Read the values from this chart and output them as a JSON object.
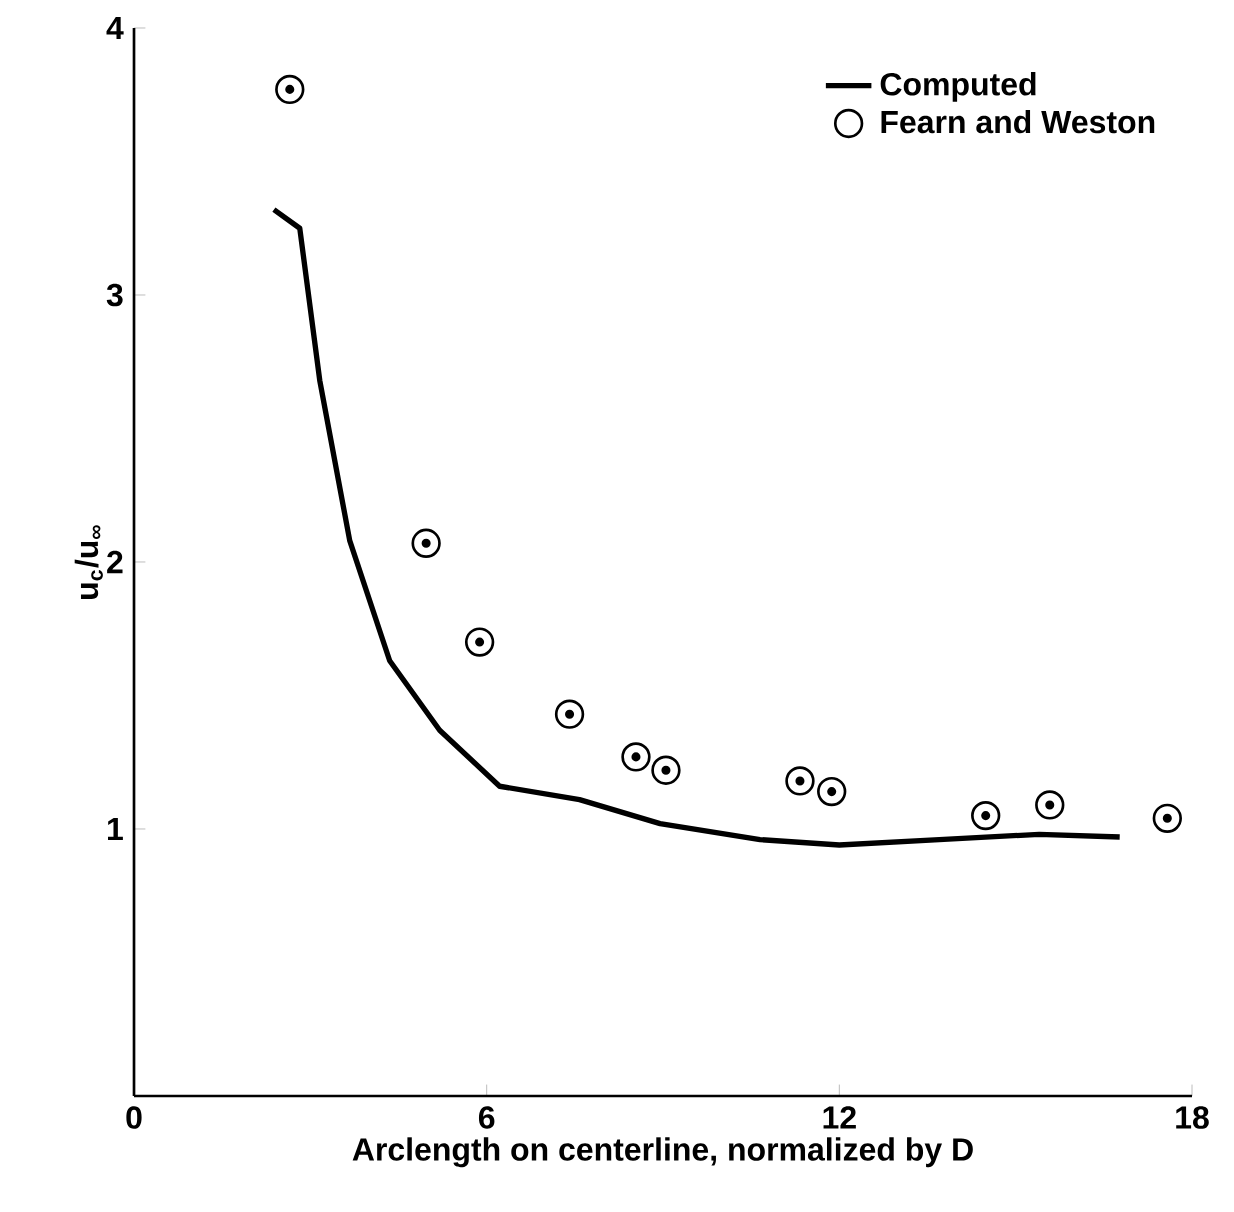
{
  "chart_data": {
    "type": "line",
    "xlabel": "Arclength on centerline, normalized by D",
    "ylabel": "u$_{c}$/u$_{∞}$",
    "xlim": [
      0,
      18
    ],
    "ylim": [
      0,
      4
    ],
    "xticks": [
      0,
      6,
      12,
      18
    ],
    "yticks": [
      1,
      2,
      3,
      4
    ],
    "legend": "top right",
    "series": [
      {
        "name": "Computed",
        "color": "#000000",
        "marker": "none",
        "x": [
          2.38,
          2.82,
          3.16,
          3.67,
          4.35,
          5.2,
          6.22,
          7.58,
          8.95,
          10.65,
          12,
          13.7,
          15.4,
          16.77
        ],
        "values": [
          3.32,
          3.25,
          2.68,
          2.08,
          1.63,
          1.37,
          1.16,
          1.11,
          1.02,
          0.96,
          0.94,
          0.96,
          0.98,
          0.97
        ]
      },
      {
        "name": "Fearn and Weston",
        "type": "scatter",
        "color": "#000000",
        "marker": "circle",
        "x": [
          2.65,
          4.97,
          5.88,
          7.41,
          8.54,
          9.05,
          11.33,
          11.87,
          14.49,
          15.58,
          17.58
        ],
        "values": [
          3.77,
          2.07,
          1.7,
          1.43,
          1.27,
          1.22,
          1.18,
          1.14,
          1.05,
          1.09,
          1.04
        ]
      }
    ]
  }
}
